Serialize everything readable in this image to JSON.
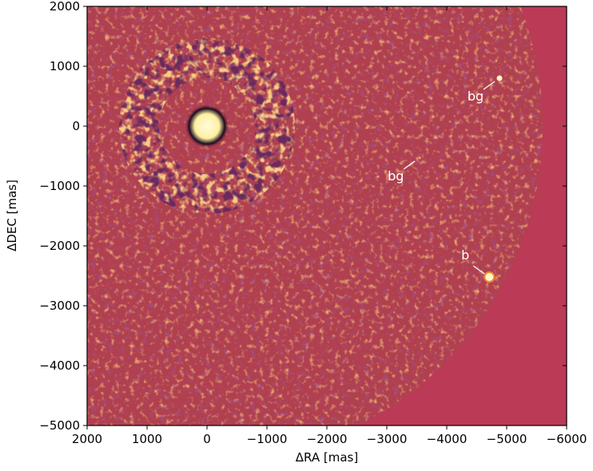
{
  "chart_data": {
    "type": "image",
    "xlabel": "ΔRA [mas]",
    "ylabel": "ΔDEC [mas]",
    "xlim": [
      2000,
      -6000
    ],
    "ylim": [
      -5000,
      2000
    ],
    "xticks": [
      2000,
      1000,
      0,
      {
        "value": -1000,
        "label": "−1000"
      },
      {
        "value": -2000,
        "label": "−2000"
      },
      {
        "value": -3000,
        "label": "−3000"
      },
      {
        "value": -4000,
        "label": "−4000"
      },
      {
        "value": -5000,
        "label": "−5000"
      },
      {
        "value": -6000,
        "label": "−6000"
      }
    ],
    "yticks": [
      2000,
      1000,
      0,
      {
        "value": -1000,
        "label": "−1000"
      },
      {
        "value": -2000,
        "label": "−2000"
      },
      {
        "value": -3000,
        "label": "−3000"
      },
      {
        "value": -4000,
        "label": "−4000"
      },
      {
        "value": -5000,
        "label": "−5000"
      }
    ],
    "annotations": [
      {
        "text": "bg",
        "x": -4880,
        "y": 800
      },
      {
        "text": "bg",
        "x": -3550,
        "y": -530
      },
      {
        "text": "b",
        "x": -4710,
        "y": -2520
      }
    ]
  }
}
